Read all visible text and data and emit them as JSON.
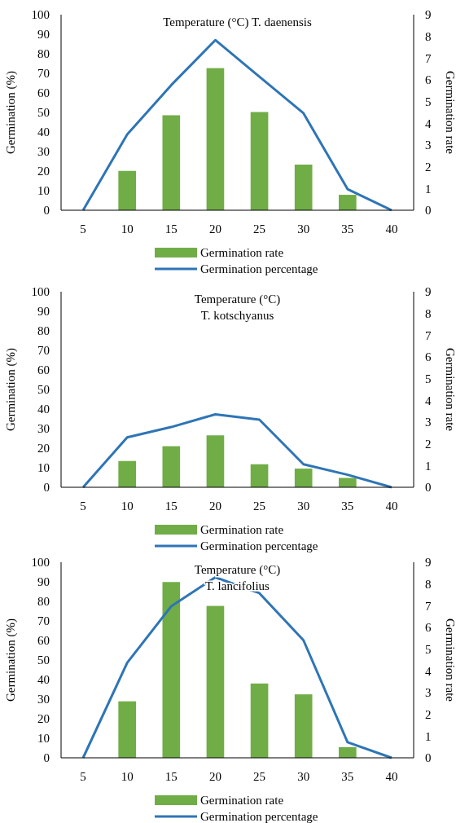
{
  "chart_data": [
    {
      "type": "bar",
      "title": "Temperature (°C) T. daenensis",
      "categories": [
        "5",
        "10",
        "15",
        "20",
        "25",
        "30",
        "35",
        "40"
      ],
      "ylabel": "Germination (%)",
      "y2label": "Germination rate",
      "ylim": [
        0,
        100
      ],
      "yticks": [
        0,
        10,
        20,
        30,
        40,
        50,
        60,
        70,
        80,
        90,
        100
      ],
      "y2lim": [
        0,
        9
      ],
      "y2ticks": [
        0,
        1,
        2,
        3,
        4,
        5,
        6,
        7,
        8,
        9
      ],
      "legend": "bottom",
      "grid": false,
      "series": [
        {
          "name": "Germination rate",
          "axis": "y2",
          "color": "#70ad47",
          "values": [
            0,
            1.81,
            4.37,
            6.54,
            4.52,
            2.1,
            0.71,
            0
          ]
        },
        {
          "name": "Germination percentage",
          "type": "line",
          "color": "#2e75b6",
          "values": [
            0,
            38.8,
            64,
            87,
            68.3,
            49.6,
            10.8,
            0
          ]
        }
      ]
    },
    {
      "type": "bar",
      "title": "Temperature (°C)",
      "subtitle": "T. kotschyanus",
      "categories": [
        "5",
        "10",
        "15",
        "20",
        "25",
        "30",
        "35",
        "40"
      ],
      "ylabel": "Germination (%)",
      "y2label": "Germination rate",
      "ylim": [
        0,
        100
      ],
      "yticks": [
        0,
        10,
        20,
        30,
        40,
        50,
        60,
        70,
        80,
        90,
        100
      ],
      "y2lim": [
        0,
        9
      ],
      "y2ticks": [
        0,
        1,
        2,
        3,
        4,
        5,
        6,
        7,
        8,
        9
      ],
      "legend": "bottom",
      "grid": false,
      "series": [
        {
          "name": "Germination rate",
          "axis": "y2",
          "color": "#70ad47",
          "values": [
            0,
            1.21,
            1.89,
            2.39,
            1.06,
            0.86,
            0.43,
            0
          ]
        },
        {
          "name": "Germination percentage",
          "type": "line",
          "color": "#2e75b6",
          "values": [
            0,
            25.5,
            30.8,
            37.3,
            34.6,
            11.8,
            6.4,
            0
          ]
        }
      ]
    },
    {
      "type": "bar",
      "title": "Temperature (°C)",
      "subtitle": "T. lancifolius",
      "categories": [
        "5",
        "10",
        "15",
        "20",
        "25",
        "30",
        "35",
        "40"
      ],
      "ylabel": "Germination (%)",
      "y2label": "Germination rate",
      "ylim": [
        0,
        100
      ],
      "yticks": [
        0,
        10,
        20,
        30,
        40,
        50,
        60,
        70,
        80,
        90,
        100
      ],
      "y2lim": [
        0,
        9
      ],
      "y2ticks": [
        0,
        1,
        2,
        3,
        4,
        5,
        6,
        7,
        8,
        9
      ],
      "legend": "bottom",
      "grid": false,
      "series": [
        {
          "name": "Germination rate",
          "axis": "y2",
          "color": "#70ad47",
          "values": [
            0,
            2.6,
            8.09,
            6.99,
            3.42,
            2.92,
            0.49,
            0
          ]
        },
        {
          "name": "Germination percentage",
          "type": "line",
          "color": "#2e75b6",
          "values": [
            0,
            48.6,
            77.5,
            92.3,
            84.2,
            60.1,
            8.0,
            0
          ]
        }
      ]
    }
  ]
}
